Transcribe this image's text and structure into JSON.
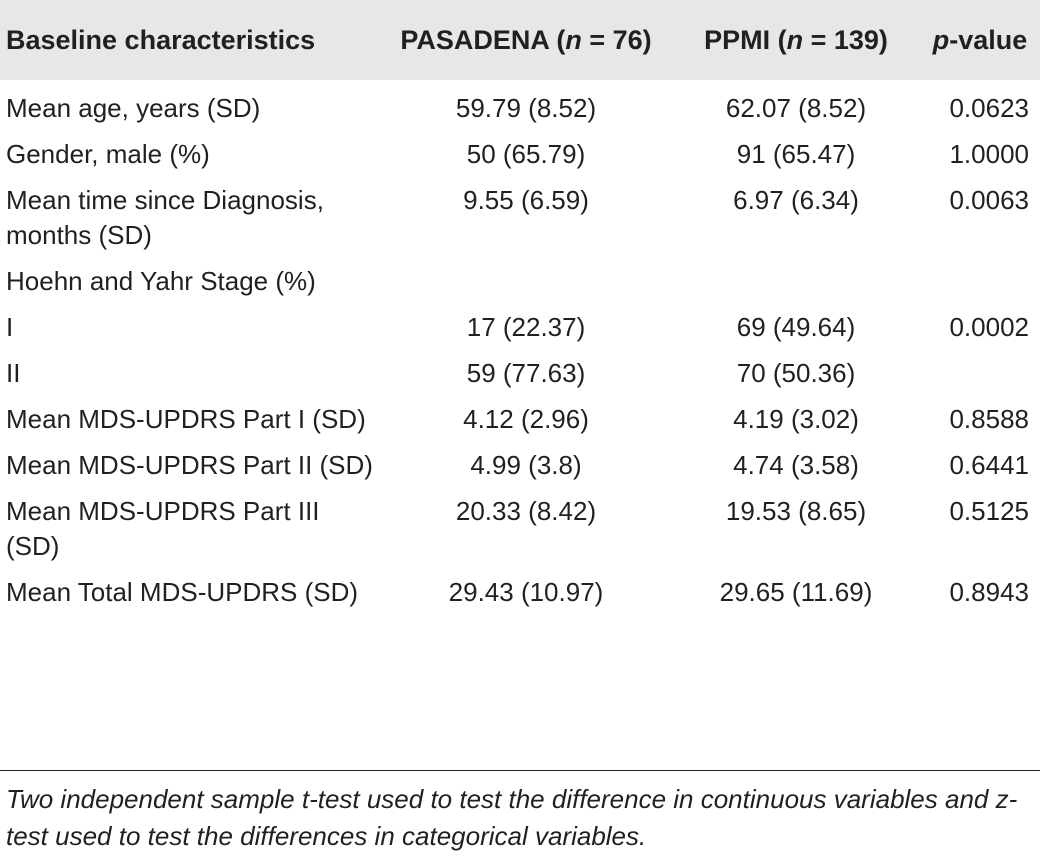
{
  "header": {
    "col0": "Baseline characteristics",
    "col1_prefix": "PASADENA (",
    "col1_n": "n",
    "col1_suffix": " = 76)",
    "col2_prefix": "PPMI (",
    "col2_n": "n",
    "col2_suffix": " = 139)",
    "col3_p": "p",
    "col3_suffix": "-value"
  },
  "rows": [
    {
      "label": "Mean age, years (SD)",
      "pasadena": "59.79 (8.52)",
      "ppmi": "62.07 (8.52)",
      "p": "0.0623"
    },
    {
      "label": "Gender, male (%)",
      "pasadena": "50 (65.79)",
      "ppmi": "91 (65.47)",
      "p": "1.0000"
    },
    {
      "label": "Mean time since Diagnosis, months (SD)",
      "pasadena": "9.55 (6.59)",
      "ppmi": "6.97 (6.34)",
      "p": "0.0063"
    },
    {
      "label": "Hoehn and Yahr Stage (%)",
      "pasadena": "",
      "ppmi": "",
      "p": ""
    },
    {
      "label": "I",
      "pasadena": "17 (22.37)",
      "ppmi": "69 (49.64)",
      "p": "0.0002"
    },
    {
      "label": "II",
      "pasadena": "59 (77.63)",
      "ppmi": "70 (50.36)",
      "p": ""
    },
    {
      "label": "Mean MDS-UPDRS Part I (SD)",
      "pasadena": "4.12 (2.96)",
      "ppmi": "4.19 (3.02)",
      "p": "0.8588"
    },
    {
      "label": "Mean MDS-UPDRS Part II (SD)",
      "pasadena": "4.99 (3.8)",
      "ppmi": "4.74 (3.58)",
      "p": "0.6441"
    },
    {
      "label": "Mean MDS-UPDRS Part III (SD)",
      "pasadena": "20.33 (8.42)",
      "ppmi": "19.53 (8.65)",
      "p": "0.5125"
    },
    {
      "label": "Mean Total MDS-UPDRS (SD)",
      "pasadena": "29.43 (10.97)",
      "ppmi": "29.65 (11.69)",
      "p": "0.8943"
    }
  ],
  "footnote": {
    "part1": "Two independent sample ",
    "t": "t",
    "part2": "-test used to test the difference in continuous variables and ",
    "z": "z",
    "part3": "-test used to test the differences in categorical variables."
  },
  "colors": {
    "header_bg": "#e6e7e8",
    "text": "#231f20"
  }
}
